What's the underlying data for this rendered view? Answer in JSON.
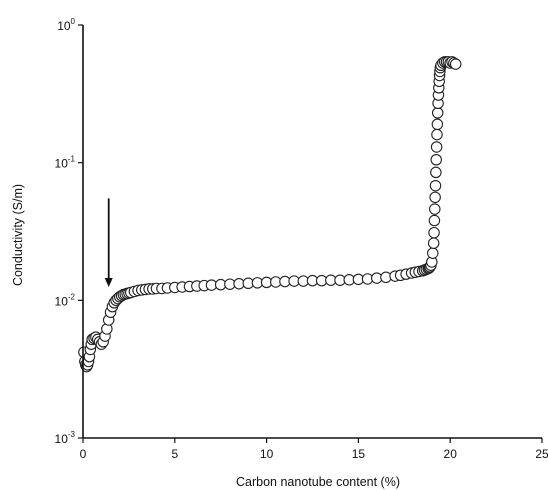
{
  "chart_data": {
    "type": "scatter",
    "xlabel": "Carbon nanotube content (%)",
    "ylabel": "Conductivity (S/m)",
    "xlim": [
      0,
      25
    ],
    "ylim": [
      0.001,
      1
    ],
    "yscale": "log",
    "grid": false,
    "x_ticks": [
      0,
      5,
      10,
      15,
      20,
      25
    ],
    "x_tick_labels": [
      "0",
      "5",
      "10",
      "15",
      "20",
      "25"
    ],
    "y_ticks": [
      {
        "value": 1,
        "base": "10",
        "exp": "0"
      },
      {
        "value": 0.1,
        "base": "10",
        "exp": "-1"
      },
      {
        "value": 0.01,
        "base": "10",
        "exp": "-2"
      },
      {
        "value": 0.001,
        "base": "10",
        "exp": "-3"
      }
    ],
    "annotations": [
      {
        "type": "arrow",
        "x": 1.4,
        "y_start": 0.055,
        "y_end": 0.0125
      }
    ],
    "series": [
      {
        "marker": "open-circle",
        "x": [
          0.05,
          0.1,
          0.15,
          0.2,
          0.25,
          0.3,
          0.35,
          0.4,
          0.45,
          0.5,
          0.6,
          0.7,
          0.8,
          0.9,
          1.0,
          1.1,
          1.2,
          1.3,
          1.4,
          1.5,
          1.6,
          1.7,
          1.8,
          1.9,
          2.0,
          2.1,
          2.2,
          2.3,
          2.4,
          2.5,
          2.6,
          2.8,
          3.0,
          3.2,
          3.4,
          3.6,
          3.8,
          4.0,
          4.3,
          4.6,
          5.0,
          5.4,
          5.8,
          6.2,
          6.6,
          7.0,
          7.5,
          8.0,
          8.5,
          9.0,
          9.5,
          10.0,
          10.5,
          11.0,
          11.5,
          12.0,
          12.5,
          13.0,
          13.5,
          14.0,
          14.5,
          15.0,
          15.5,
          16.0,
          16.5,
          17.0,
          17.3,
          17.6,
          17.9,
          18.1,
          18.3,
          18.5,
          18.6,
          18.7,
          18.8,
          18.85,
          18.9,
          18.95,
          19.0,
          19.05,
          19.1,
          19.12,
          19.14,
          19.16,
          19.18,
          19.2,
          19.22,
          19.24,
          19.26,
          19.28,
          19.3,
          19.32,
          19.34,
          19.36,
          19.38,
          19.4,
          19.42,
          19.44,
          19.46,
          19.5,
          19.6,
          19.7,
          19.8,
          19.9,
          20.0,
          20.1,
          20.2,
          20.3
        ],
        "y": [
          0.0042,
          0.0036,
          0.0034,
          0.0033,
          0.0034,
          0.0036,
          0.0039,
          0.0044,
          0.0048,
          0.0052,
          0.0053,
          0.0054,
          0.0052,
          0.005,
          0.0048,
          0.005,
          0.0055,
          0.0062,
          0.0072,
          0.0082,
          0.009,
          0.0096,
          0.01,
          0.0103,
          0.0106,
          0.0108,
          0.011,
          0.0111,
          0.0112,
          0.0113,
          0.0114,
          0.0116,
          0.0118,
          0.0119,
          0.012,
          0.0121,
          0.0121,
          0.0122,
          0.0122,
          0.0123,
          0.0124,
          0.0125,
          0.0126,
          0.0127,
          0.0128,
          0.0129,
          0.013,
          0.0131,
          0.0132,
          0.0133,
          0.0134,
          0.0135,
          0.0136,
          0.0137,
          0.0138,
          0.0138,
          0.0139,
          0.0139,
          0.014,
          0.014,
          0.0141,
          0.0142,
          0.0143,
          0.0145,
          0.0147,
          0.015,
          0.0152,
          0.0155,
          0.0158,
          0.016,
          0.0162,
          0.0164,
          0.0166,
          0.0168,
          0.017,
          0.0172,
          0.0175,
          0.018,
          0.019,
          0.022,
          0.026,
          0.031,
          0.038,
          0.046,
          0.056,
          0.068,
          0.085,
          0.105,
          0.13,
          0.16,
          0.19,
          0.23,
          0.27,
          0.31,
          0.35,
          0.39,
          0.43,
          0.46,
          0.49,
          0.51,
          0.53,
          0.54,
          0.54,
          0.54,
          0.53,
          0.54,
          0.53,
          0.52
        ]
      }
    ]
  }
}
